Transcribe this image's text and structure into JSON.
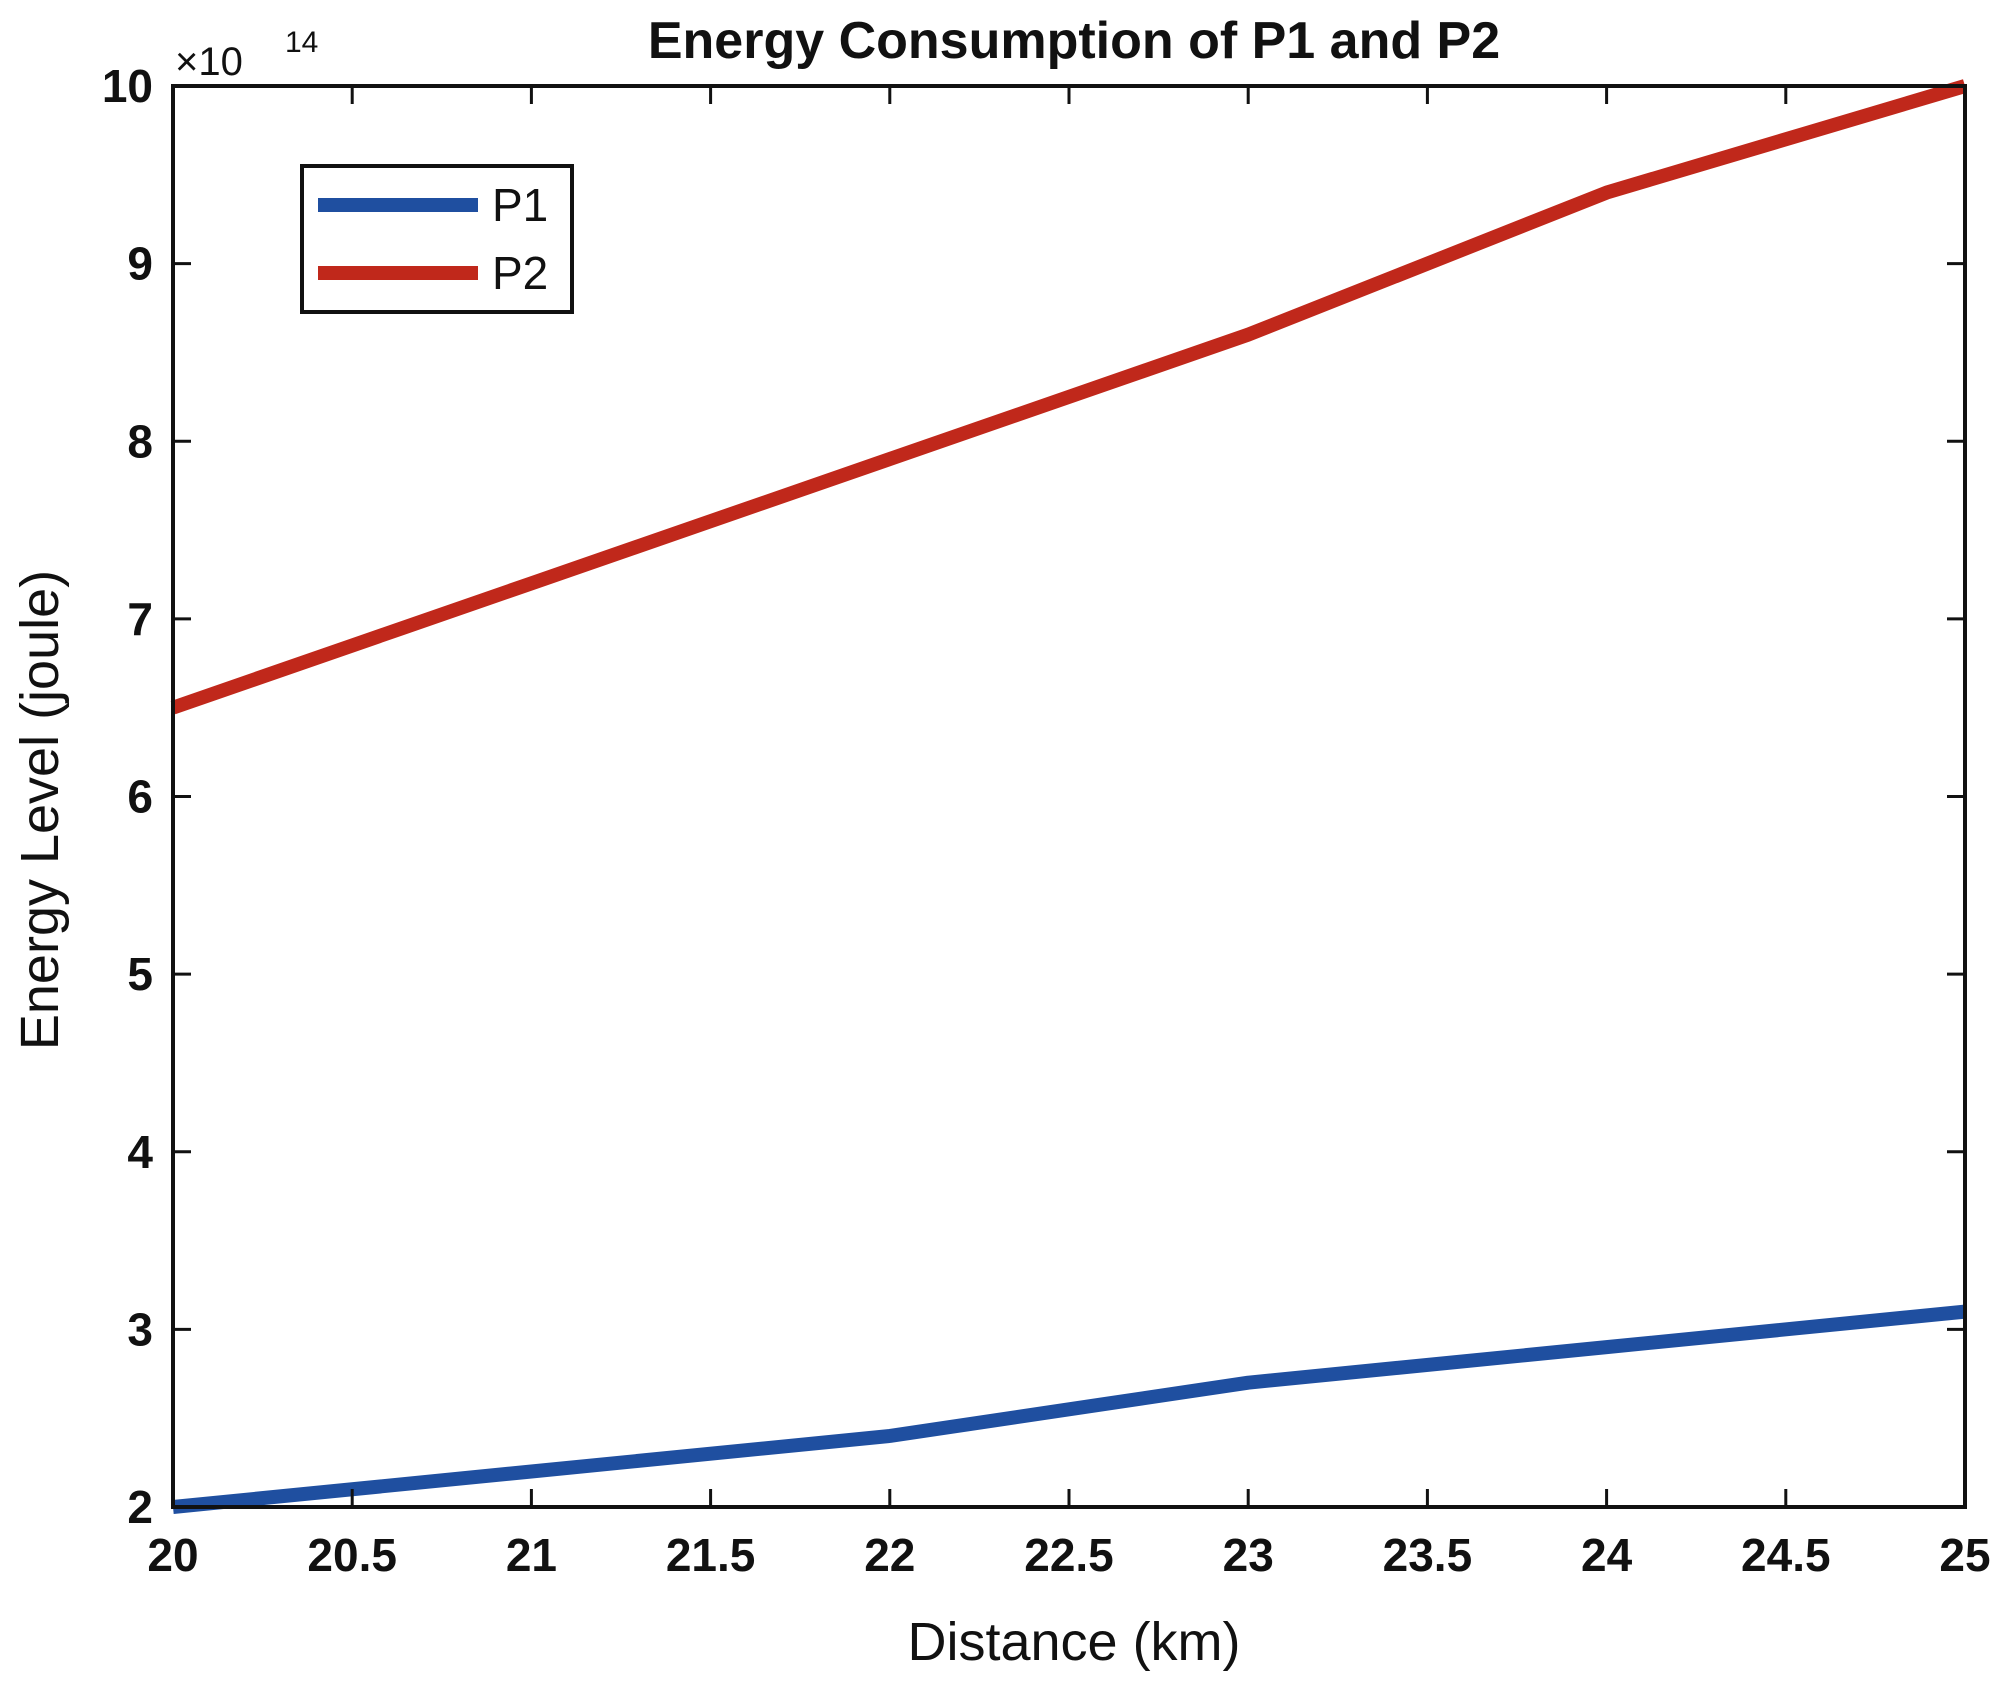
{
  "chart_data": {
    "type": "line",
    "title": "Energy Consumption of P1 and P2",
    "xlabel": "Distance (km)",
    "ylabel": "Energy Level (joule)",
    "y_scale_label": "×10",
    "y_scale_exponent": "14",
    "xlim": [
      20,
      25
    ],
    "ylim": [
      2,
      10
    ],
    "x_ticks": [
      "20",
      "20.5",
      "21",
      "21.5",
      "22",
      "22.5",
      "23",
      "23.5",
      "24",
      "24.5",
      "25"
    ],
    "y_ticks": [
      "2",
      "3",
      "4",
      "5",
      "6",
      "7",
      "8",
      "9",
      "10"
    ],
    "x": [
      20,
      21,
      22,
      23,
      24,
      25
    ],
    "series": [
      {
        "name": "P1",
        "color": "#1f4fa0",
        "values": [
          2.0,
          2.2,
          2.4,
          2.7,
          2.9,
          3.1
        ]
      },
      {
        "name": "P2",
        "color": "#c0281b",
        "values": [
          6.5,
          7.2,
          7.9,
          8.6,
          9.4,
          10.0
        ]
      }
    ],
    "legend_position": "top-left",
    "grid": false
  }
}
